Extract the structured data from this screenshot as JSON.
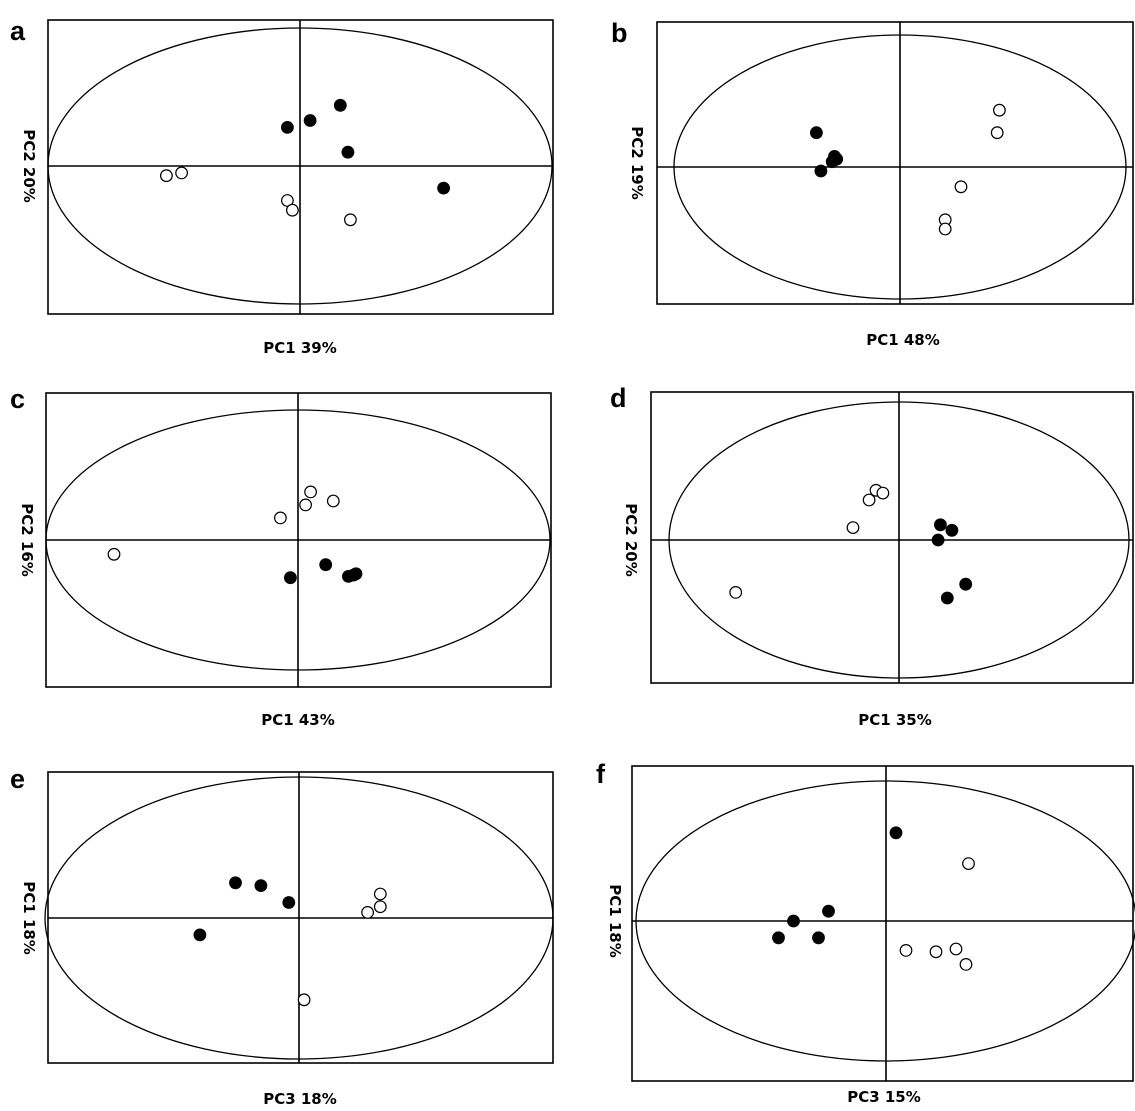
{
  "chart_data": [
    {
      "type": "scatter",
      "panel": "a",
      "xlabel": "PC1 39%",
      "ylabel": "PC2 20%",
      "xlim": [
        -1,
        1
      ],
      "ylim": [
        -1,
        1
      ],
      "grid": false,
      "series": [
        {
          "marker": "filled",
          "color": "#000000",
          "points": [
            [
              -0.05,
              0.28
            ],
            [
              0.04,
              0.33
            ],
            [
              0.16,
              0.44
            ],
            [
              0.19,
              0.1
            ],
            [
              0.57,
              -0.16
            ]
          ]
        },
        {
          "marker": "open",
          "color": "#ffffff",
          "points": [
            [
              -0.53,
              -0.07
            ],
            [
              -0.47,
              -0.05
            ],
            [
              -0.05,
              -0.25
            ],
            [
              -0.03,
              -0.32
            ],
            [
              0.2,
              -0.39
            ]
          ]
        }
      ]
    },
    {
      "type": "scatter",
      "panel": "b",
      "xlabel": "PC1 48%",
      "ylabel": "PC2 19%",
      "xlim": [
        -1,
        1
      ],
      "ylim": [
        -1,
        1
      ],
      "grid": false,
      "series": [
        {
          "marker": "filled",
          "color": "#000000",
          "points": [
            [
              -0.37,
              0.26
            ],
            [
              -0.29,
              0.08
            ],
            [
              -0.28,
              0.06
            ],
            [
              -0.3,
              0.04
            ],
            [
              -0.35,
              -0.03
            ]
          ]
        },
        {
          "marker": "open",
          "color": "#ffffff",
          "points": [
            [
              0.44,
              0.43
            ],
            [
              0.43,
              0.26
            ],
            [
              0.27,
              -0.15
            ],
            [
              0.2,
              -0.4
            ],
            [
              0.2,
              -0.47
            ]
          ]
        }
      ]
    },
    {
      "type": "scatter",
      "panel": "c",
      "xlabel": "PC1 43%",
      "ylabel": "PC2 16%",
      "xlim": [
        -1,
        1
      ],
      "ylim": [
        -1,
        1
      ],
      "grid": false,
      "series": [
        {
          "marker": "filled",
          "color": "#000000",
          "points": [
            [
              -0.03,
              -0.29
            ],
            [
              0.11,
              -0.19
            ],
            [
              0.2,
              -0.28
            ],
            [
              0.23,
              -0.26
            ],
            [
              0.22,
              -0.27
            ]
          ]
        },
        {
          "marker": "open",
          "color": "#ffffff",
          "points": [
            [
              0.05,
              0.37
            ],
            [
              0.03,
              0.27
            ],
            [
              0.14,
              0.3
            ],
            [
              -0.07,
              0.17
            ],
            [
              -0.73,
              -0.11
            ]
          ]
        }
      ]
    },
    {
      "type": "scatter",
      "panel": "d",
      "xlabel": "PC1 35%",
      "ylabel": "PC2 20%",
      "xlim": [
        -1,
        1
      ],
      "ylim": [
        -1,
        1
      ],
      "grid": false,
      "series": [
        {
          "marker": "filled",
          "color": "#000000",
          "points": [
            [
              0.18,
              0.11
            ],
            [
              0.23,
              0.07
            ],
            [
              0.17,
              0.0
            ],
            [
              0.29,
              -0.32
            ],
            [
              0.21,
              -0.42
            ]
          ]
        },
        {
          "marker": "open",
          "color": "#ffffff",
          "points": [
            [
              -0.1,
              0.36
            ],
            [
              -0.07,
              0.34
            ],
            [
              -0.13,
              0.29
            ],
            [
              -0.2,
              0.09
            ],
            [
              -0.71,
              -0.38
            ]
          ]
        }
      ]
    },
    {
      "type": "scatter",
      "panel": "e",
      "xlabel": "PC3 18%",
      "ylabel": "PC1 18%",
      "xlim": [
        -1,
        1
      ],
      "ylim": [
        -1,
        1
      ],
      "grid": false,
      "series": [
        {
          "marker": "filled",
          "color": "#000000",
          "points": [
            [
              -0.25,
              0.25
            ],
            [
              -0.15,
              0.23
            ],
            [
              -0.04,
              0.11
            ],
            [
              -0.39,
              -0.12
            ]
          ]
        },
        {
          "marker": "open",
          "color": "#ffffff",
          "points": [
            [
              0.32,
              0.17
            ],
            [
              0.32,
              0.08
            ],
            [
              0.27,
              0.04
            ],
            [
              0.02,
              -0.58
            ]
          ]
        }
      ]
    },
    {
      "type": "scatter",
      "panel": "f",
      "xlabel": "PC3 15%",
      "ylabel": "PC1 18%",
      "xlim": [
        -1,
        1
      ],
      "ylim": [
        -1,
        1
      ],
      "grid": false,
      "series": [
        {
          "marker": "filled",
          "color": "#000000",
          "points": [
            [
              0.04,
              0.63
            ],
            [
              -0.23,
              0.07
            ],
            [
              -0.37,
              0.0
            ],
            [
              -0.43,
              -0.12
            ],
            [
              -0.27,
              -0.12
            ]
          ]
        },
        {
          "marker": "open",
          "color": "#ffffff",
          "points": [
            [
              0.33,
              0.41
            ],
            [
              0.08,
              -0.21
            ],
            [
              0.2,
              -0.22
            ],
            [
              0.28,
              -0.2
            ],
            [
              0.32,
              -0.31
            ]
          ]
        }
      ]
    }
  ]
}
